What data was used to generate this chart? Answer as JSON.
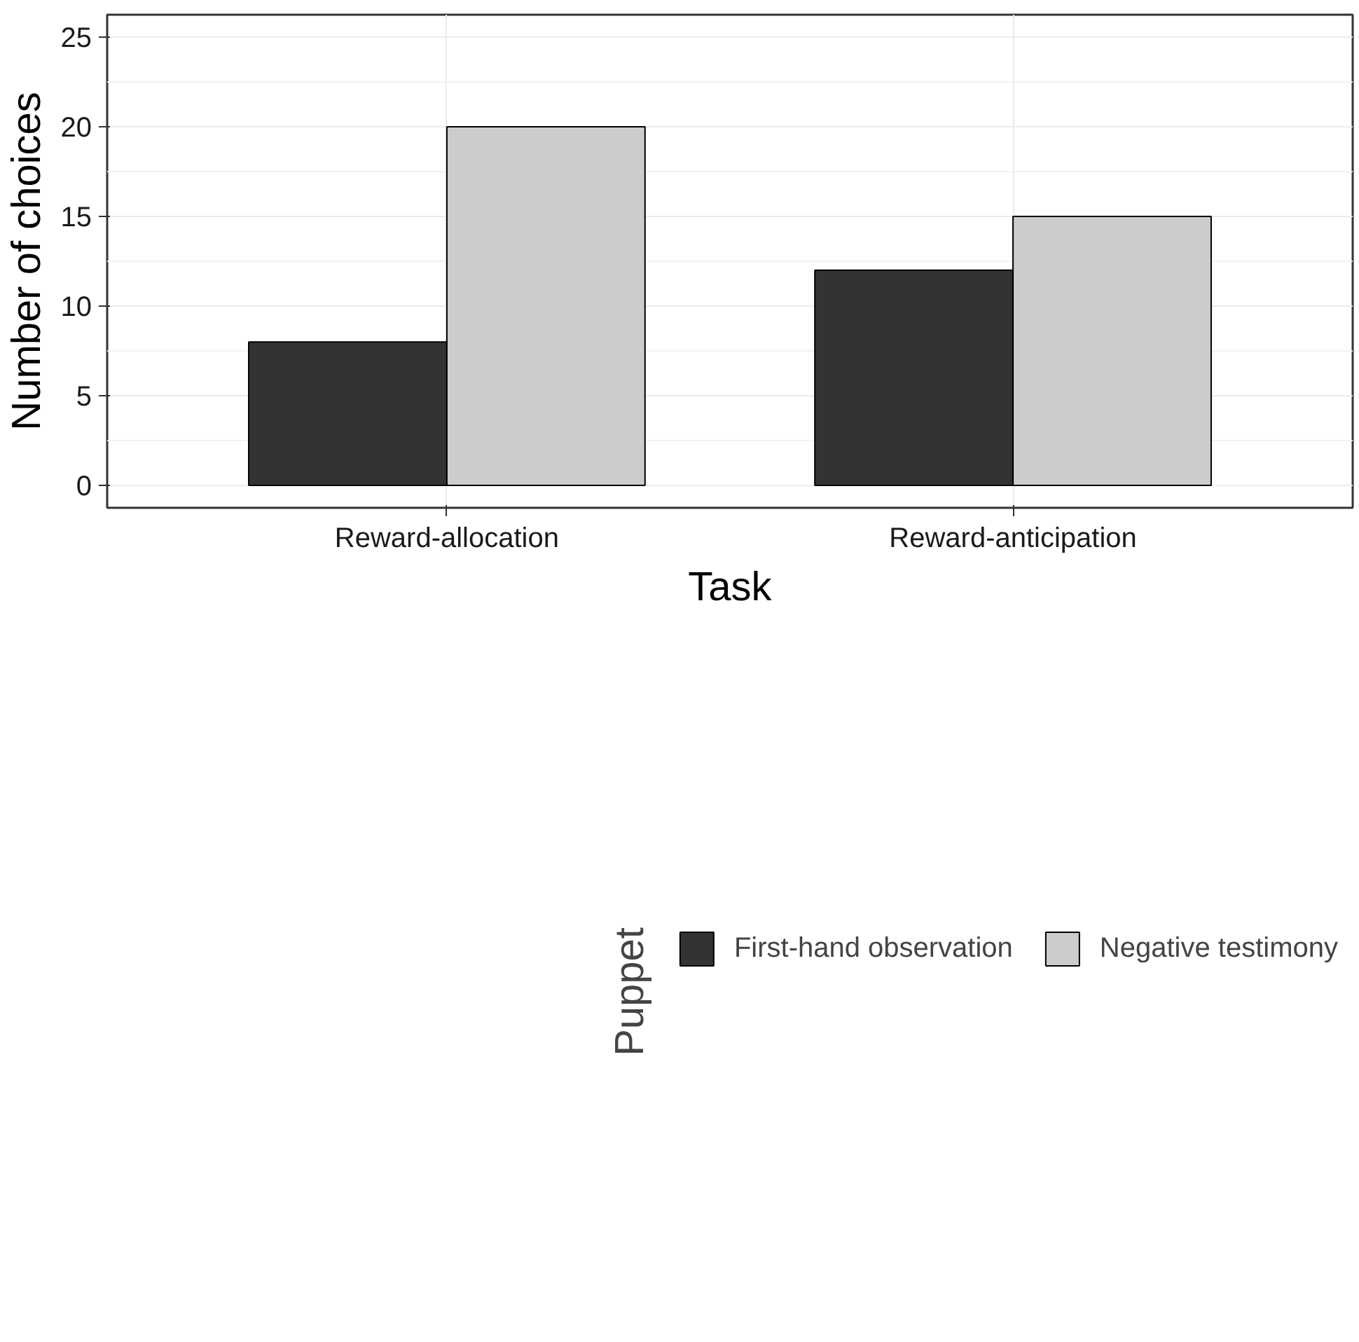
{
  "chart_data": {
    "type": "bar",
    "xlabel": "Task",
    "ylabel": "Number of choices",
    "legend_title": "Puppet",
    "categories": [
      "Reward-allocation",
      "Reward-anticipation"
    ],
    "series": [
      {
        "name": "First-hand observation",
        "color": "#333333",
        "values": [
          8,
          12
        ]
      },
      {
        "name": "Negative testimony",
        "color": "#cccccc",
        "values": [
          20,
          15
        ]
      }
    ],
    "ylim": [
      -1.25,
      26.25
    ],
    "yticks": [
      0,
      5,
      10,
      15,
      20,
      25
    ],
    "grid": true,
    "legend": "bottom"
  }
}
